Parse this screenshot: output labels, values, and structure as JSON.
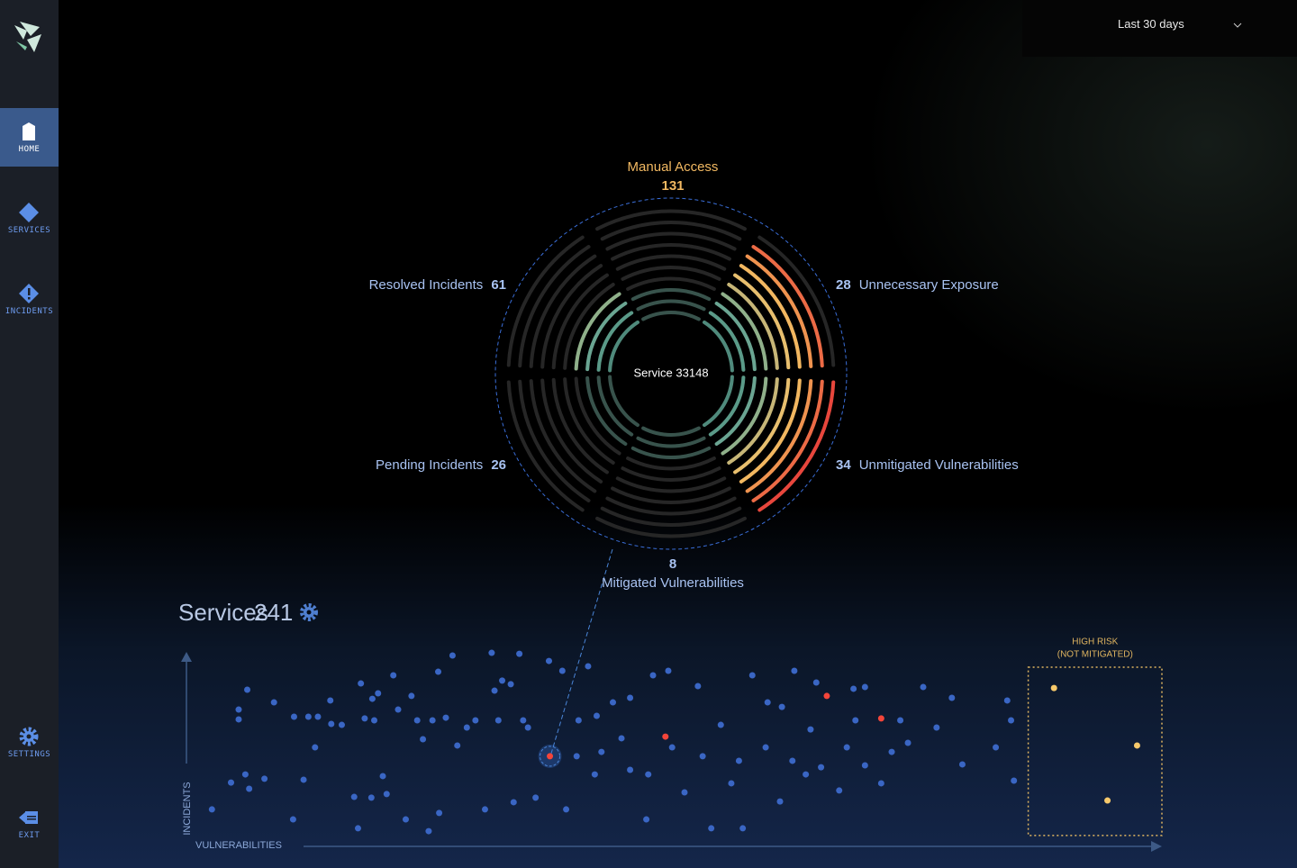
{
  "sidebar": {
    "items": [
      "HOME",
      "SERVICES",
      "INCIDENTS",
      "SETTINGS",
      "EXIT"
    ]
  },
  "header": {
    "range": "Last 30 days"
  },
  "chart_data": [
    {
      "type": "radial",
      "center_label": "Service 33148",
      "segments": [
        {
          "name": "Manual Access",
          "value": 131,
          "level": 3,
          "color": "#f2b962"
        },
        {
          "name": "Unnecessary Exposure",
          "value": 28,
          "level": 9,
          "color": "#a9c3f2"
        },
        {
          "name": "Unmitigated Vulnerabilities",
          "value": 34,
          "level": 10,
          "color": "#a9c3f2"
        },
        {
          "name": "Mitigated Vulnerabilities",
          "value": 8,
          "level": 3,
          "color": "#a9c3f2"
        },
        {
          "name": "Pending Incidents",
          "value": 26,
          "level": 3,
          "color": "#a9c3f2"
        },
        {
          "name": "Resolved Incidents",
          "value": 61,
          "level": 4,
          "color": "#a9c3f2"
        }
      ]
    },
    {
      "type": "scatter",
      "title": "Services",
      "count": 241,
      "x_label": "VULNERABILITIES",
      "y_label": "INCIDENTS",
      "xlim": [
        0,
        100
      ],
      "ylim": [
        0,
        100
      ],
      "region": {
        "label": [
          "HIGH RISK",
          "(NOT MITIGATED)"
        ],
        "xlim": [
          86,
          100
        ],
        "ylim": [
          1,
          90
        ],
        "color": "#e0b560"
      },
      "series": [
        {
          "color": "#3a66c4",
          "x": [
            0.5,
            2.5,
            3.3,
            3.3,
            4.0,
            4.2,
            4.4,
            6.0,
            7.0,
            9.1,
            9.0,
            10.1,
            10.6,
            11.3,
            11.6,
            12.9,
            13.0,
            14.1,
            15.4,
            15.8,
            16.1,
            16.5,
            17.2,
            17.3,
            17.5,
            17.9,
            18.4,
            18.8,
            19.5,
            20.0,
            20.8,
            21.4,
            22.0,
            22.6,
            23.2,
            23.6,
            24.2,
            24.3,
            25.0,
            25.7,
            26.2,
            27.2,
            28.1,
            29.1,
            29.8,
            30.1,
            30.5,
            30.9,
            31.8,
            32.1,
            32.7,
            33.1,
            33.6,
            34.4,
            35.8,
            37.2,
            37.6,
            38.9,
            39.9,
            40.8,
            41.3,
            42.5,
            43.4,
            44.3,
            46.0,
            46.2,
            46.7,
            48.3,
            48.7,
            50.0,
            51.4,
            52.8,
            53.8,
            54.9,
            56.1,
            57.1,
            58.7,
            60.0,
            60.2,
            61.5,
            62.7,
            63.2,
            63.8,
            64.3,
            66.2,
            67.7,
            67.9,
            68.9,
            70.6,
            71.7,
            72.6,
            73.4,
            75.0,
            76.4,
            78.0,
            79.1,
            82.6,
            83.8,
            84.2,
            84.5,
            38.7,
            40.6,
            44.3,
            51.9,
            55.7,
            58.5,
            61.3,
            67.0,
            68.9
          ],
          "y": [
            14.8,
            29,
            67.6,
            62.4,
            33.3,
            78.1,
            25.7,
            31,
            71.4,
            63.8,
            9.5,
            30.5,
            63.8,
            47.6,
            63.8,
            72.4,
            60,
            59.5,
            21.4,
            4.8,
            81.4,
            62.9,
            21,
            73.3,
            61.9,
            76.2,
            32.4,
            22.9,
            85.7,
            67.6,
            9.5,
            74.8,
            61.9,
            51.9,
            3.3,
            61.9,
            87.6,
            12.9,
            63.3,
            96.2,
            48.6,
            58.1,
            61.9,
            14.8,
            97.6,
            77.6,
            61.9,
            82.9,
            81,
            18.6,
            97.1,
            61.9,
            58.1,
            21,
            93.3,
            88.1,
            14.8,
            61.9,
            90.5,
            64.3,
            45.2,
            71.4,
            52.4,
            73.8,
            9.5,
            33.3,
            85.7,
            88.1,
            47.6,
            23.8,
            80,
            4.8,
            59.5,
            28.6,
            4.8,
            85.7,
            71.4,
            19,
            69,
            88.1,
            33.3,
            57.1,
            81.9,
            37.1,
            24.8,
            78.6,
            61.9,
            79.5,
            28.6,
            45.2,
            61.9,
            50,
            79.5,
            58.1,
            73.8,
            38.6,
            47.6,
            72.4,
            61.9,
            30,
            42.9,
            33.3,
            35.7,
            42.9,
            40.5,
            47.6,
            40.5,
            47.6,
            38.1
          ]
        },
        {
          "color": "#f4453a",
          "x": [
            48.0,
            64.9,
            70.6
          ],
          "y": [
            53.3,
            74.8,
            62.9
          ]
        },
        {
          "color": "#f4453a",
          "selected": true,
          "x": [
            35.9
          ],
          "y": [
            42.9
          ]
        },
        {
          "color": "#f7c96b",
          "x": [
            88.7,
            97.4,
            94.3
          ],
          "y": [
            79.0,
            48.6,
            19.5
          ]
        }
      ]
    }
  ]
}
